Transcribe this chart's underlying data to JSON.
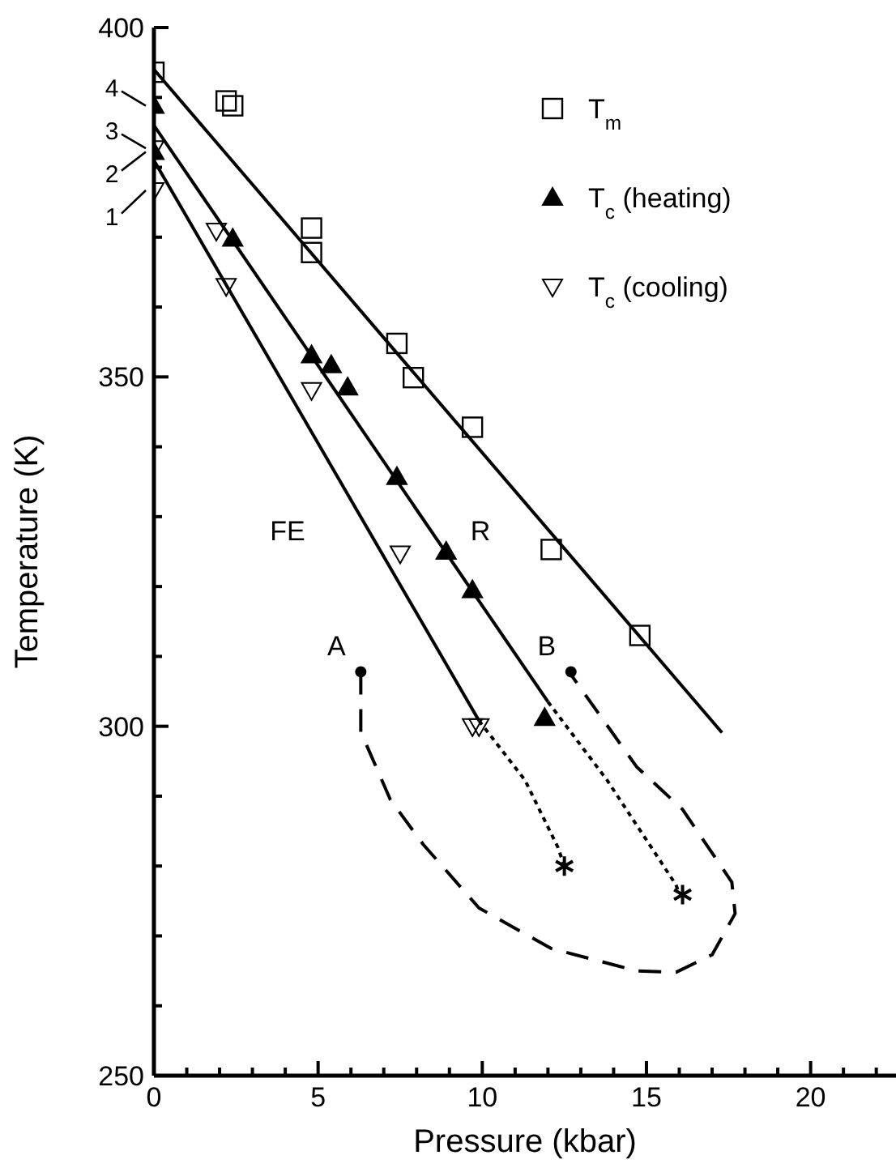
{
  "chart_data": {
    "type": "scatter",
    "xlabel": "Pressure (kbar)",
    "ylabel": "Temperature (K)",
    "xlim": [
      0,
      22.6
    ],
    "ylim": [
      250,
      400
    ],
    "xticks": [
      0,
      {
        "value": 1,
        "label": null
      },
      {
        "value": 2,
        "label": null
      },
      {
        "value": 3,
        "label": null
      },
      {
        "value": 4,
        "label": null
      },
      5,
      {
        "value": 6,
        "label": null
      },
      {
        "value": 7,
        "label": null
      },
      {
        "value": 8,
        "label": null
      },
      {
        "value": 9,
        "label": null
      },
      10,
      {
        "value": 11,
        "label": null
      },
      {
        "value": 12,
        "label": null
      },
      {
        "value": 13,
        "label": null
      },
      {
        "value": 14,
        "label": null
      },
      15,
      {
        "value": 16,
        "label": null
      },
      {
        "value": 17,
        "label": null
      },
      {
        "value": 18,
        "label": null
      },
      {
        "value": 19,
        "label": null
      },
      20,
      {
        "value": 21,
        "label": null
      },
      {
        "value": 22,
        "label": null
      }
    ],
    "yticks": [
      250,
      {
        "value": 260,
        "label": null
      },
      {
        "value": 270,
        "label": null
      },
      {
        "value": 280,
        "label": null
      },
      {
        "value": 290,
        "label": null
      },
      300,
      {
        "value": 310,
        "label": null
      },
      {
        "value": 320,
        "label": null
      },
      {
        "value": 330,
        "label": null
      },
      {
        "value": 340,
        "label": null
      },
      350,
      {
        "value": 360,
        "label": null
      },
      {
        "value": 370,
        "label": null
      },
      {
        "value": 380,
        "label": null
      },
      {
        "value": 390,
        "label": null
      },
      400
    ],
    "legend": "top right",
    "grid": false,
    "series": [
      {
        "name": "T$_{m}$",
        "marker": "square",
        "color": "#000000",
        "x": [
          0,
          2.2,
          2.4,
          4.8,
          4.8,
          7.4,
          7.9,
          9.7,
          12.1,
          14.8
        ],
        "values": [
          393.6,
          389.5,
          388.8,
          371.3,
          367.8,
          354.8,
          349.9,
          342.8,
          325.3,
          313.0
        ]
      },
      {
        "name": "T$_{c}$ (heating)",
        "marker": "triangle",
        "color": "#000000",
        "x": [
          0,
          0,
          2.4,
          4.8,
          5.4,
          5.9,
          7.4,
          8.9,
          9.7,
          11.9
        ],
        "values": [
          388.8,
          382.2,
          369.8,
          353.1,
          351.7,
          348.5,
          335.7,
          325.0,
          319.5,
          301.2
        ]
      },
      {
        "name": "T$_{c}$ (cooling)",
        "marker": "triangle-down",
        "color": "#000000",
        "x": [
          0,
          0,
          1.9,
          2.2,
          4.8,
          7.5,
          9.7,
          9.9
        ],
        "values": [
          382.7,
          376.7,
          370.9,
          363.0,
          348.1,
          324.7,
          300.0,
          300.0
        ]
      },
      {
        "type": "line",
        "line_style": "solid",
        "marker": "none",
        "color": "#000000",
        "x": [
          0,
          17.3
        ],
        "values": [
          394,
          299.1
        ]
      },
      {
        "type": "line",
        "line_style": "solid",
        "marker": "none",
        "color": "#000000",
        "x": [
          0,
          12.0
        ],
        "values": [
          386,
          303.5
        ]
      },
      {
        "type": "line",
        "line_style": "solid",
        "marker": "none",
        "color": "#000000",
        "x": [
          0,
          9.9
        ],
        "values": [
          381,
          300.8
        ]
      },
      {
        "type": "line",
        "line_style": "dotted",
        "marker": "none",
        "color": "#000000",
        "x": [
          9.9,
          11.3,
          12.3,
          12.5
        ],
        "values": [
          300.8,
          292.3,
          282.7,
          280.0
        ]
      },
      {
        "type": "line",
        "line_style": "dotted",
        "marker": "none",
        "color": "#000000",
        "x": [
          12.0,
          13.8,
          15.9,
          16.0
        ],
        "values": [
          303.5,
          292.3,
          277.3,
          276.0
        ]
      },
      {
        "type": "line",
        "line_style": "dashed",
        "marker": "none",
        "color": "#000000",
        "x": [
          6.3,
          6.3,
          6.3,
          7.2,
          8.2,
          9.9,
          12.1,
          14.7,
          15.9,
          17.0,
          17.7,
          17.6,
          16.1,
          14.7,
          12.7
        ],
        "values": [
          307.8,
          303.5,
          299.2,
          289.5,
          283.1,
          274.0,
          268.2,
          265.0,
          264.8,
          267.3,
          273.2,
          277.7,
          288.1,
          294.2,
          307.4
        ]
      },
      {
        "marker": "cross",
        "color": "#000000",
        "x": [
          12.5,
          16.1
        ],
        "values": [
          280.0,
          275.9
        ]
      },
      {
        "marker": "circle",
        "color": "#000000",
        "x": [
          6.3,
          12.7
        ],
        "values": [
          307.8,
          307.8
        ]
      }
    ],
    "annotations": [
      "FE",
      "R",
      {
        "text": "A",
        "x": 6.3,
        "y": 307.8
      },
      {
        "text": "B",
        "x": 12.7,
        "y": 307.8
      },
      {
        "text": "4",
        "x": 0,
        "y": 388.8
      },
      {
        "text": "3",
        "x": 0,
        "y": 382.7
      },
      {
        "text": "2",
        "x": 0,
        "y": 382.2
      },
      {
        "text": "1",
        "x": 0,
        "y": 376.7
      }
    ]
  }
}
